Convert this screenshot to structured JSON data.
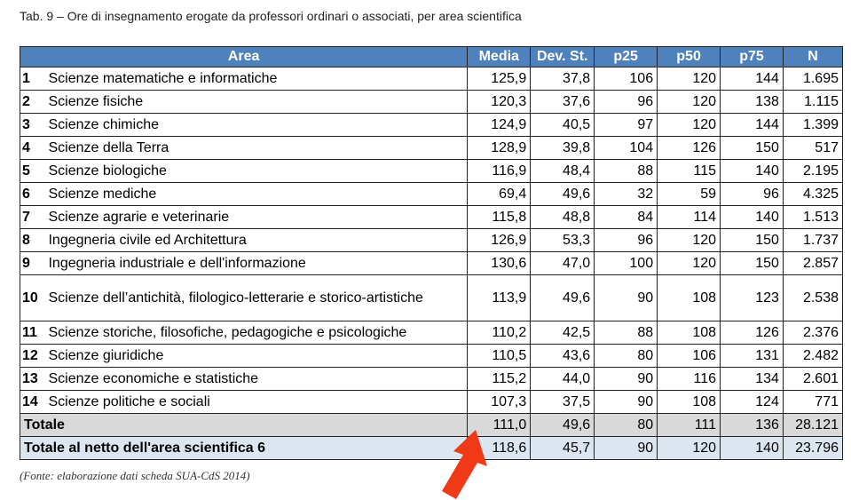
{
  "header": {
    "title": "Tab. 9 – Ore di insegnamento erogate da professori ordinari o associati, per area scientifica"
  },
  "table": {
    "columns": [
      "Area",
      "Media",
      "Dev. St.",
      "p25",
      "p50",
      "p75",
      "N"
    ],
    "rows": [
      [
        "1",
        "Scienze matematiche e informatiche",
        "125,9",
        "37,8",
        "106",
        "120",
        "144",
        "1.695"
      ],
      [
        "2",
        "Scienze fisiche",
        "120,3",
        "37,6",
        "96",
        "120",
        "138",
        "1.115"
      ],
      [
        "3",
        "Scienze chimiche",
        "124,9",
        "40,5",
        "97",
        "120",
        "144",
        "1.399"
      ],
      [
        "4",
        "Scienze della Terra",
        "128,9",
        "39,8",
        "104",
        "126",
        "150",
        "517"
      ],
      [
        "5",
        "Scienze biologiche",
        "116,9",
        "48,4",
        "88",
        "115",
        "140",
        "2.195"
      ],
      [
        "6",
        "Scienze mediche",
        "69,4",
        "49,6",
        "32",
        "59",
        "96",
        "4.325"
      ],
      [
        "7",
        "Scienze agrarie e veterinarie",
        "115,8",
        "48,8",
        "84",
        "114",
        "140",
        "1.513"
      ],
      [
        "8",
        "Ingegneria civile ed Architettura",
        "126,9",
        "53,3",
        "96",
        "120",
        "150",
        "1.737"
      ],
      [
        "9",
        "Ingegneria industriale e dell'informazione",
        "130,6",
        "47,0",
        "100",
        "120",
        "150",
        "2.857"
      ],
      [
        "10",
        "Scienze dell’antichità, filologico-letterarie e storico-artistiche",
        "113,9",
        "49,6",
        "90",
        "108",
        "123",
        "2.538"
      ],
      [
        "11",
        "Scienze storiche, filosofiche, pedagogiche e psicologiche",
        "110,2",
        "42,5",
        "88",
        "108",
        "126",
        "2.376"
      ],
      [
        "12",
        "Scienze giuridiche",
        "110,5",
        "43,6",
        "80",
        "106",
        "131",
        "2.482"
      ],
      [
        "13",
        "Scienze economiche e statistiche",
        "115,2",
        "44,0",
        "90",
        "116",
        "134",
        "2.601"
      ],
      [
        "14",
        "Scienze politiche e sociali",
        "107,3",
        "37,5",
        "90",
        "108",
        "124",
        "771"
      ]
    ],
    "totals": [
      [
        "Totale",
        "111,0",
        "49,6",
        "80",
        "111",
        "136",
        "28.121"
      ],
      [
        "Totale al netto dell'area scientifica 6",
        "118,6",
        "45,7",
        "90",
        "120",
        "140",
        "23.796"
      ]
    ]
  },
  "footnote": "(Fonte: elaborazione dati scheda SUA-CdS 2014)"
}
